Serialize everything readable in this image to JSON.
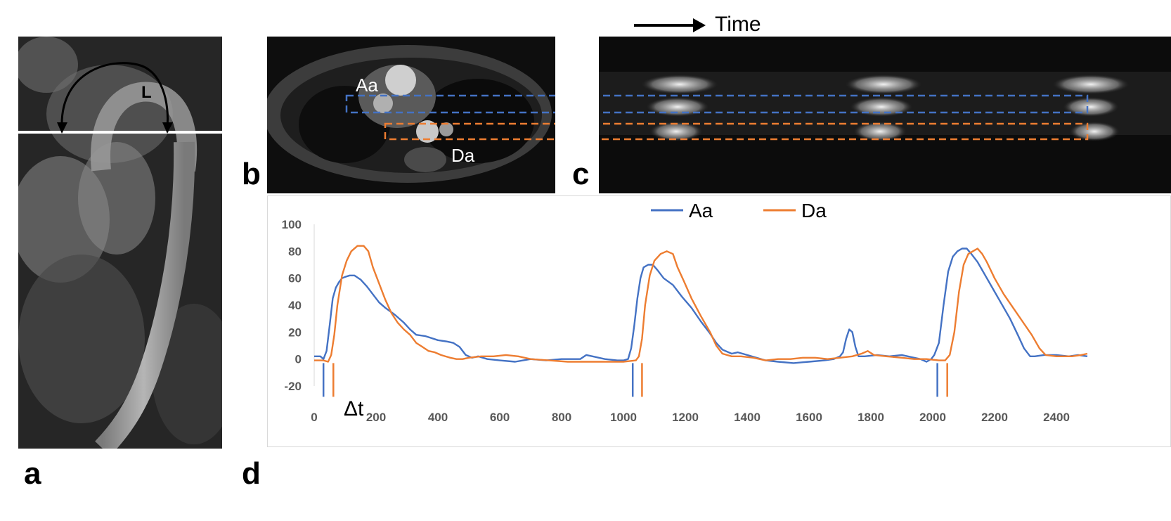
{
  "panels": {
    "a": {
      "letter": "a",
      "arc_label": "L"
    },
    "b": {
      "letter": "b",
      "label_aa": "Aa",
      "label_da": "Da"
    },
    "c": {
      "letter": "c",
      "time_label": "Time"
    },
    "d": {
      "letter": "d",
      "delta_label": "Δt"
    }
  },
  "colors": {
    "aa": "#4472C4",
    "da": "#ED7D31",
    "axis_text": "#595959"
  },
  "chart_data": {
    "type": "line",
    "title": "",
    "xlabel": "",
    "ylabel": "",
    "xlim": [
      0,
      2500
    ],
    "ylim": [
      -20,
      100
    ],
    "x_ticks": [
      0,
      200,
      400,
      600,
      800,
      1000,
      1200,
      1400,
      1600,
      1800,
      2000,
      2200,
      2400
    ],
    "y_ticks": [
      -20,
      0,
      20,
      40,
      60,
      80,
      100
    ],
    "legend": {
      "placement": "top-center",
      "entries": [
        "Aa",
        "Da"
      ]
    },
    "onset_markers": {
      "Aa": [
        30,
        1030,
        2015
      ],
      "Da": [
        62,
        1060,
        2047
      ]
    },
    "series": [
      {
        "name": "Aa",
        "color": "#4472C4",
        "points": [
          [
            0,
            2
          ],
          [
            20,
            2
          ],
          [
            30,
            0
          ],
          [
            40,
            6
          ],
          [
            50,
            25
          ],
          [
            60,
            45
          ],
          [
            70,
            53
          ],
          [
            80,
            57
          ],
          [
            90,
            60
          ],
          [
            100,
            61
          ],
          [
            115,
            62
          ],
          [
            130,
            62
          ],
          [
            150,
            59
          ],
          [
            170,
            54
          ],
          [
            190,
            48
          ],
          [
            210,
            42
          ],
          [
            230,
            38
          ],
          [
            260,
            33
          ],
          [
            290,
            27
          ],
          [
            310,
            22
          ],
          [
            330,
            18
          ],
          [
            360,
            17
          ],
          [
            400,
            14
          ],
          [
            430,
            13
          ],
          [
            450,
            12
          ],
          [
            470,
            9
          ],
          [
            490,
            3
          ],
          [
            510,
            1
          ],
          [
            530,
            2
          ],
          [
            560,
            0
          ],
          [
            600,
            -1
          ],
          [
            650,
            -2
          ],
          [
            700,
            0
          ],
          [
            750,
            -1
          ],
          [
            800,
            0
          ],
          [
            860,
            0
          ],
          [
            880,
            3
          ],
          [
            900,
            2
          ],
          [
            940,
            0
          ],
          [
            980,
            -1
          ],
          [
            1000,
            -1
          ],
          [
            1015,
            0
          ],
          [
            1025,
            8
          ],
          [
            1035,
            25
          ],
          [
            1045,
            45
          ],
          [
            1055,
            60
          ],
          [
            1065,
            68
          ],
          [
            1080,
            70
          ],
          [
            1095,
            70
          ],
          [
            1110,
            66
          ],
          [
            1130,
            60
          ],
          [
            1160,
            55
          ],
          [
            1190,
            46
          ],
          [
            1220,
            38
          ],
          [
            1250,
            28
          ],
          [
            1280,
            19
          ],
          [
            1300,
            12
          ],
          [
            1320,
            7
          ],
          [
            1350,
            4
          ],
          [
            1370,
            5
          ],
          [
            1400,
            3
          ],
          [
            1430,
            1
          ],
          [
            1460,
            -1
          ],
          [
            1500,
            -2
          ],
          [
            1550,
            -3
          ],
          [
            1600,
            -2
          ],
          [
            1650,
            -1
          ],
          [
            1680,
            0
          ],
          [
            1700,
            2
          ],
          [
            1710,
            5
          ],
          [
            1720,
            15
          ],
          [
            1730,
            22
          ],
          [
            1740,
            20
          ],
          [
            1750,
            9
          ],
          [
            1760,
            2
          ],
          [
            1780,
            2
          ],
          [
            1820,
            3
          ],
          [
            1860,
            2
          ],
          [
            1900,
            3
          ],
          [
            1940,
            1
          ],
          [
            1960,
            0
          ],
          [
            1980,
            -2
          ],
          [
            1995,
            0
          ],
          [
            2005,
            3
          ],
          [
            2020,
            12
          ],
          [
            2035,
            40
          ],
          [
            2050,
            65
          ],
          [
            2065,
            76
          ],
          [
            2080,
            80
          ],
          [
            2095,
            82
          ],
          [
            2110,
            82
          ],
          [
            2125,
            78
          ],
          [
            2145,
            72
          ],
          [
            2170,
            62
          ],
          [
            2195,
            52
          ],
          [
            2220,
            42
          ],
          [
            2250,
            30
          ],
          [
            2275,
            18
          ],
          [
            2295,
            8
          ],
          [
            2315,
            2
          ],
          [
            2330,
            2
          ],
          [
            2360,
            3
          ],
          [
            2400,
            3
          ],
          [
            2440,
            2
          ],
          [
            2470,
            3
          ],
          [
            2500,
            2
          ]
        ]
      },
      {
        "name": "Da",
        "color": "#ED7D31",
        "points": [
          [
            0,
            -1
          ],
          [
            30,
            -1
          ],
          [
            45,
            -2
          ],
          [
            55,
            3
          ],
          [
            65,
            18
          ],
          [
            75,
            40
          ],
          [
            90,
            62
          ],
          [
            105,
            73
          ],
          [
            120,
            80
          ],
          [
            140,
            84
          ],
          [
            160,
            84
          ],
          [
            175,
            80
          ],
          [
            190,
            68
          ],
          [
            210,
            56
          ],
          [
            230,
            44
          ],
          [
            250,
            34
          ],
          [
            270,
            27
          ],
          [
            290,
            22
          ],
          [
            310,
            18
          ],
          [
            330,
            12
          ],
          [
            350,
            9
          ],
          [
            370,
            6
          ],
          [
            390,
            5
          ],
          [
            410,
            3
          ],
          [
            440,
            1
          ],
          [
            460,
            0
          ],
          [
            480,
            0
          ],
          [
            500,
            1
          ],
          [
            540,
            2
          ],
          [
            580,
            2
          ],
          [
            620,
            3
          ],
          [
            660,
            2
          ],
          [
            700,
            0
          ],
          [
            760,
            -1
          ],
          [
            820,
            -2
          ],
          [
            880,
            -2
          ],
          [
            940,
            -2
          ],
          [
            1000,
            -2
          ],
          [
            1040,
            -1
          ],
          [
            1050,
            2
          ],
          [
            1060,
            15
          ],
          [
            1070,
            40
          ],
          [
            1085,
            62
          ],
          [
            1100,
            73
          ],
          [
            1120,
            78
          ],
          [
            1140,
            80
          ],
          [
            1160,
            78
          ],
          [
            1175,
            68
          ],
          [
            1195,
            58
          ],
          [
            1220,
            45
          ],
          [
            1250,
            32
          ],
          [
            1280,
            20
          ],
          [
            1300,
            10
          ],
          [
            1320,
            4
          ],
          [
            1350,
            2
          ],
          [
            1380,
            2
          ],
          [
            1420,
            1
          ],
          [
            1460,
            -1
          ],
          [
            1500,
            0
          ],
          [
            1540,
            0
          ],
          [
            1580,
            1
          ],
          [
            1620,
            1
          ],
          [
            1660,
            0
          ],
          [
            1700,
            1
          ],
          [
            1740,
            2
          ],
          [
            1770,
            4
          ],
          [
            1790,
            6
          ],
          [
            1810,
            3
          ],
          [
            1850,
            2
          ],
          [
            1900,
            1
          ],
          [
            1940,
            0
          ],
          [
            1980,
            0
          ],
          [
            2020,
            -1
          ],
          [
            2040,
            -1
          ],
          [
            2055,
            3
          ],
          [
            2070,
            20
          ],
          [
            2085,
            50
          ],
          [
            2100,
            70
          ],
          [
            2115,
            78
          ],
          [
            2130,
            80
          ],
          [
            2145,
            82
          ],
          [
            2160,
            78
          ],
          [
            2175,
            72
          ],
          [
            2200,
            60
          ],
          [
            2230,
            48
          ],
          [
            2260,
            38
          ],
          [
            2290,
            28
          ],
          [
            2320,
            18
          ],
          [
            2345,
            8
          ],
          [
            2365,
            3
          ],
          [
            2400,
            2
          ],
          [
            2450,
            2
          ],
          [
            2480,
            3
          ],
          [
            2500,
            4
          ]
        ]
      }
    ]
  }
}
